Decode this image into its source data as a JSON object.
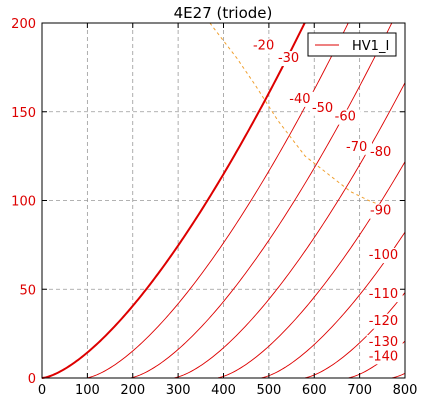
{
  "chart_data": {
    "type": "line",
    "title": "4E27 (triode)",
    "xlabel": "",
    "ylabel": "",
    "xlim": [
      0,
      800
    ],
    "ylim": [
      0,
      200
    ],
    "x_ticks": [
      0,
      100,
      200,
      300,
      400,
      500,
      600,
      700,
      800
    ],
    "y_ticks": [
      0,
      50,
      100,
      150,
      200
    ],
    "grid": true,
    "legend": {
      "placement": "top-right",
      "entries": [
        "HV1_I"
      ]
    },
    "colors": {
      "curves": "#dd0000",
      "load_line": "#f0a030",
      "grid": "#999999",
      "axes": "#000000"
    },
    "curve_model": {
      "mu": 9.6,
      "k": 1.436e-05,
      "exponent": 1.5
    },
    "grid_voltages": [
      0,
      -10,
      -20,
      -30,
      -40,
      -50,
      -60,
      -70,
      -80,
      -90,
      -100,
      -110,
      -120,
      -130,
      -140
    ],
    "series": [
      {
        "grid_voltage": 0,
        "bold": true
      },
      {
        "grid_voltage": -10,
        "label": "",
        "label_at": [
          0,
          0
        ]
      },
      {
        "grid_voltage": -20,
        "label": "-20",
        "label_at": [
          465,
          185
        ]
      },
      {
        "grid_voltage": -30,
        "label": "-30",
        "label_at": [
          520,
          178
        ]
      },
      {
        "grid_voltage": -40,
        "label": "-40",
        "label_at": [
          545,
          155
        ]
      },
      {
        "grid_voltage": -50,
        "label": "-50",
        "label_at": [
          595,
          150
        ]
      },
      {
        "grid_voltage": -60,
        "label": "-60",
        "label_at": [
          645,
          145
        ]
      },
      {
        "grid_voltage": -70,
        "label": "-70",
        "label_at": [
          670,
          128
        ]
      },
      {
        "grid_voltage": -80,
        "label": "-80",
        "label_at": [
          723,
          125
        ]
      },
      {
        "grid_voltage": -90,
        "label": "-90",
        "label_at": [
          723,
          92
        ]
      },
      {
        "grid_voltage": -100,
        "label": "-100",
        "label_at": [
          720,
          67
        ]
      },
      {
        "grid_voltage": -110,
        "label": "-110",
        "label_at": [
          720,
          45
        ]
      },
      {
        "grid_voltage": -120,
        "label": "-120",
        "label_at": [
          720,
          30
        ]
      },
      {
        "grid_voltage": -130,
        "label": "-130",
        "label_at": [
          720,
          18
        ]
      },
      {
        "grid_voltage": -140,
        "label": "-140",
        "label_at": [
          720,
          10
        ]
      }
    ],
    "load_line": {
      "x": [
        370,
        430,
        470,
        520,
        580,
        630,
        680,
        720,
        740,
        770
      ],
      "y": [
        200,
        180,
        165,
        145,
        125,
        115,
        105,
        100,
        98,
        96
      ]
    }
  }
}
